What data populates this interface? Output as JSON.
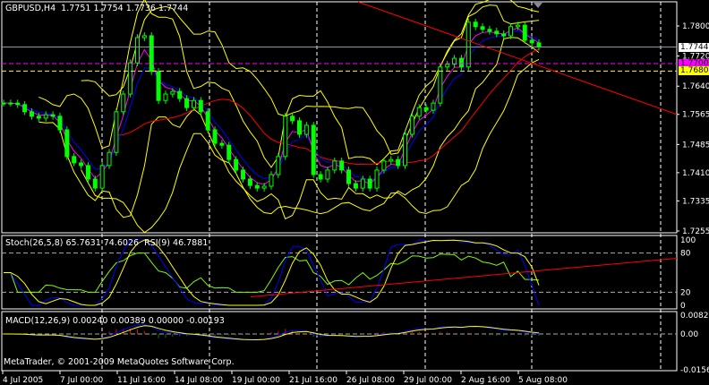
{
  "symbol_header": {
    "symbol": "GBPUSD,H4",
    "open": "1.7751",
    "high": "1.7754",
    "low": "1.7736",
    "close": "1.7744"
  },
  "stoch_header": "Stoch(26,5,8) 65.7631 74.6026",
  "rsi_header": "RSI(9) 46.7881",
  "macd_header": "MACD(12,26,9) 0.00240 0.00389 0.00000 -0.00193",
  "copyright": "MetaTrader, © 2001-2009 MetaQuotes Software Corp.",
  "colors": {
    "bars": "#00ff00",
    "ma_fast": "#ff00ff",
    "ma_mid": "#0000ff",
    "ma_slow": "#ff0000",
    "bands": "#ffff00",
    "trendline": "#ff0000",
    "rsi": "#7cfc00",
    "bid_line": "#8899aa"
  },
  "chart_data": [
    {
      "type": "candlestick",
      "title": "GBPUSD,H4",
      "ylim": [
        1.7255,
        1.786
      ],
      "y_ticks": [
        "1.7800",
        "1.7720",
        "1.7640",
        "1.7565",
        "1.7485",
        "1.7410",
        "1.7335",
        "1.7255"
      ],
      "x_ticks": [
        "4 Jul 2005",
        "7 Jul 00:00",
        "11 Jul 16:00",
        "14 Jul 08:00",
        "19 Jul 00:00",
        "21 Jul 16:00",
        "26 Jul 08:00",
        "29 Jul 00:00",
        "2 Aug 16:00",
        "5 Aug 08:00"
      ],
      "close": [
        1.7595,
        1.7595,
        1.7591,
        1.7572,
        1.756,
        1.7555,
        1.7564,
        1.756,
        1.7524,
        1.7453,
        1.7436,
        1.7429,
        1.7393,
        1.7369,
        1.7429,
        1.7464,
        1.7572,
        1.7619,
        1.7702,
        1.7769,
        1.7774,
        1.7679,
        1.7602,
        1.7619,
        1.7626,
        1.7607,
        1.7583,
        1.7602,
        1.7572,
        1.7524,
        1.7488,
        1.7483,
        1.7445,
        1.7417,
        1.7393,
        1.7376,
        1.7369,
        1.7374,
        1.7405,
        1.7453,
        1.756,
        1.7548,
        1.7512,
        1.7536,
        1.7405,
        1.7393,
        1.7417,
        1.7441,
        1.7417,
        1.7381,
        1.7369,
        1.7393,
        1.7369,
        1.7417,
        1.7441,
        1.7445,
        1.7429,
        1.7512,
        1.756,
        1.7583,
        1.7576,
        1.7595,
        1.7691,
        1.7698,
        1.7714,
        1.7691,
        1.781,
        1.7798,
        1.7791,
        1.7786,
        1.7779,
        1.7774,
        1.7798,
        1.7802,
        1.7762,
        1.7755,
        1.7744
      ],
      "price_tags": [
        {
          "label": "1.7744",
          "value": 1.7744,
          "color": "#ffffff",
          "line": "solid"
        },
        {
          "label": "1.7700",
          "value": 1.77,
          "color": "#ff00ff",
          "line": "dashed"
        },
        {
          "label": "1.7680",
          "value": 1.768,
          "color": "#ffff00",
          "line": "dashed"
        }
      ],
      "trendline": {
        "from_price": 1.7864,
        "to_price": 1.7565
      }
    },
    {
      "type": "line",
      "ylim": [
        0,
        100
      ],
      "y_ticks": [
        "100",
        "80",
        "20",
        "0"
      ],
      "levels": [
        80,
        20
      ],
      "trendline": {
        "from_value": 13,
        "to_value": 72
      }
    },
    {
      "type": "bar",
      "ylim": [
        -0.01561,
        0.00821
      ],
      "y_ticks": [
        "0.00821",
        "0.00",
        "-0.01561"
      ]
    }
  ]
}
